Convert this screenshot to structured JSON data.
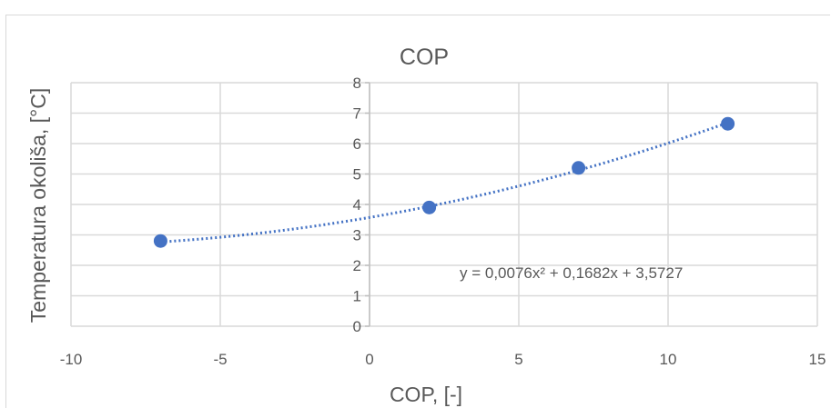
{
  "chart_data": {
    "type": "scatter",
    "title": "COP",
    "xlabel": "COP, [-]",
    "ylabel": "Temperatura okoliša, [°C]",
    "xlim": [
      -10,
      15
    ],
    "ylim": [
      0,
      8
    ],
    "x_ticks": [
      "-10",
      "-5",
      "0",
      "5",
      "10",
      "15"
    ],
    "y_ticks": [
      "0",
      "1",
      "2",
      "3",
      "4",
      "5",
      "6",
      "7",
      "8"
    ],
    "grid": true,
    "series": [
      {
        "x": [
          -7,
          2,
          7,
          12
        ],
        "y": [
          2.8,
          3.9,
          5.2,
          6.65
        ],
        "color": "#4472c4"
      }
    ],
    "trendline": {
      "type": "polynomial",
      "order": 2,
      "coefficients": [
        0.0076,
        0.1682,
        3.5727
      ],
      "x_range": [
        -7,
        12
      ],
      "style": "dotted",
      "color": "#4472c4"
    },
    "annotation": "y = 0,0076x² + 0,1682x + 3,5727"
  }
}
